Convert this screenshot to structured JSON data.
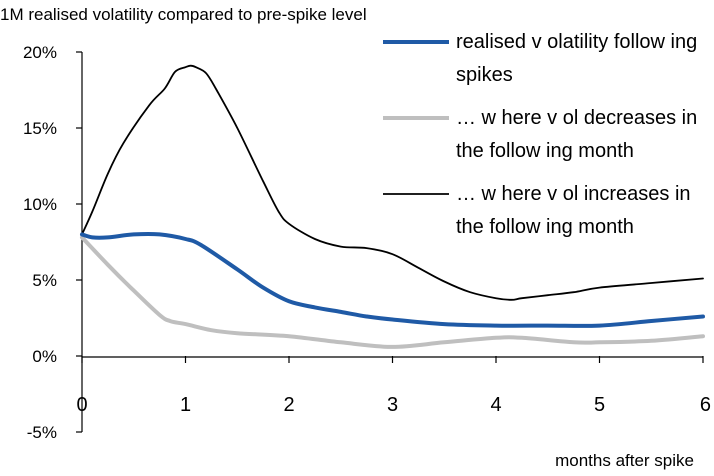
{
  "chart_data": {
    "type": "line",
    "title": "1M realised volatility compared to pre-spike level",
    "xlabel": "months after spike",
    "ylabel": "",
    "xlim": [
      0,
      6
    ],
    "ylim": [
      -5,
      20
    ],
    "x_ticks": [
      "0",
      "1",
      "2",
      "3",
      "4",
      "5",
      "6"
    ],
    "y_ticks": [
      "20%",
      "15%",
      "10%",
      "5%",
      "0%",
      "-5%"
    ],
    "grid": false,
    "legend_position": "top-right",
    "series": [
      {
        "name": "realised v olatility  follow ing spikes",
        "legend_lines": [
          "realised v olatility  follow ing",
          "spikes"
        ],
        "color": "#1f5aa6",
        "x": [
          0,
          0.1,
          0.25,
          0.5,
          0.75,
          1.0,
          1.15,
          1.5,
          1.75,
          2.0,
          2.25,
          2.5,
          2.75,
          3.0,
          3.5,
          4.0,
          4.5,
          5.0,
          5.5,
          6.0
        ],
        "y": [
          8.0,
          7.8,
          7.8,
          8.0,
          8.0,
          7.7,
          7.3,
          5.7,
          4.5,
          3.6,
          3.2,
          2.9,
          2.6,
          2.4,
          2.1,
          2.0,
          2.0,
          2.0,
          2.3,
          2.6
        ]
      },
      {
        "name": "… w here v ol decreases in the follow ing month",
        "legend_lines": [
          "… w here v ol decreases in",
          "the follow ing month"
        ],
        "color": "#bfbfbf",
        "x": [
          0,
          0.25,
          0.5,
          0.75,
          0.85,
          1.0,
          1.25,
          1.5,
          2.0,
          2.5,
          3.0,
          3.5,
          4.0,
          4.25,
          4.75,
          5.0,
          5.5,
          6.0
        ],
        "y": [
          7.8,
          6.0,
          4.3,
          2.7,
          2.3,
          2.1,
          1.7,
          1.5,
          1.3,
          0.9,
          0.6,
          0.9,
          1.2,
          1.2,
          0.9,
          0.9,
          1.0,
          1.3
        ]
      },
      {
        "name": "… w here v ol increases in the follow ing month",
        "legend_lines": [
          "… w here v ol increases in",
          "the follow ing month"
        ],
        "color": "#000000",
        "x": [
          0,
          0.1,
          0.25,
          0.4,
          0.65,
          0.8,
          0.9,
          1.0,
          1.05,
          1.1,
          1.2,
          1.3,
          1.5,
          1.75,
          1.9,
          2.0,
          2.25,
          2.5,
          2.75,
          3.0,
          3.25,
          3.5,
          3.75,
          4.0,
          4.15,
          4.25,
          4.5,
          4.75,
          5.0,
          5.5,
          6.0
        ],
        "y": [
          8.0,
          9.5,
          12.0,
          14.0,
          16.5,
          17.6,
          18.7,
          19.0,
          19.1,
          19.0,
          18.6,
          17.5,
          15.0,
          11.5,
          9.5,
          8.7,
          7.7,
          7.2,
          7.1,
          6.7,
          5.8,
          4.9,
          4.2,
          3.8,
          3.7,
          3.8,
          4.0,
          4.2,
          4.5,
          4.8,
          5.1
        ]
      }
    ]
  }
}
